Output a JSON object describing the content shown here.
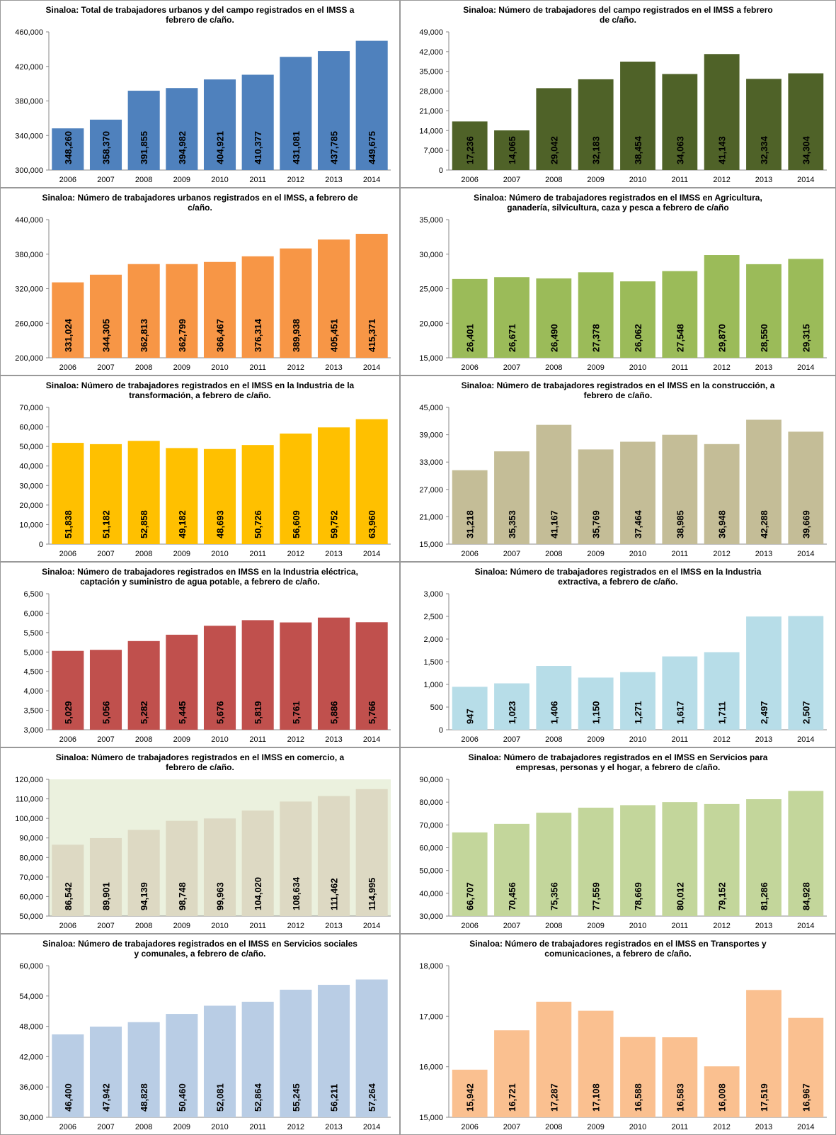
{
  "chart_data": [
    {
      "type": "bar",
      "title": "Sinaloa: Total de trabajadores urbanos y del campo registrados en el IMSS a febrero de c/año.",
      "color": "#4f81bd",
      "categories": [
        "2006",
        "2007",
        "2008",
        "2009",
        "2010",
        "2011",
        "2012",
        "2013",
        "2014"
      ],
      "values": [
        348260,
        358370,
        391855,
        394982,
        404921,
        410377,
        431081,
        437785,
        449675
      ],
      "value_labels": [
        "348,260",
        "358,370",
        "391,855",
        "394,982",
        "404,921",
        "410,377",
        "431,081",
        "437,785",
        "449,675"
      ],
      "ylim": [
        300000,
        460000
      ],
      "yticks": [
        {
          "value": 300000,
          "label": "300,000"
        },
        {
          "value": 340000,
          "label": "340,000"
        },
        {
          "value": 380000,
          "label": "380,000"
        },
        {
          "value": 420000,
          "label": "420,000"
        },
        {
          "value": 460000,
          "label": "460,000"
        }
      ]
    },
    {
      "type": "bar",
      "title": "Sinaloa: Número de trabajadores del campo registrados en el IMSS a febrero de c/año.",
      "color": "#4f6228",
      "categories": [
        "2006",
        "2007",
        "2008",
        "2009",
        "2010",
        "2011",
        "2012",
        "2013",
        "2014"
      ],
      "values": [
        17236,
        14065,
        29042,
        32183,
        38454,
        34063,
        41143,
        32334,
        34304
      ],
      "value_labels": [
        "17,236",
        "14,065",
        "29,042",
        "32,183",
        "38,454",
        "34,063",
        "41,143",
        "32,334",
        "34,304"
      ],
      "ylim": [
        0,
        49000
      ],
      "yticks": [
        0,
        {
          "value": 7000,
          "label": "7,000"
        },
        {
          "value": 14000,
          "label": "14,000"
        },
        {
          "value": 21000,
          "label": "21,000"
        },
        {
          "value": 28000,
          "label": "28,000"
        },
        {
          "value": 35000,
          "label": "35,000"
        },
        {
          "value": 42000,
          "label": "42,000"
        },
        {
          "value": 49000,
          "label": "49,000"
        }
      ]
    },
    {
      "type": "bar",
      "title": "Sinaloa: Número de trabajadores urbanos registrados en el IMSS, a febrero de c/año.",
      "color": "#f79646",
      "categories": [
        "2006",
        "2007",
        "2008",
        "2009",
        "2010",
        "2011",
        "2012",
        "2013",
        "2014"
      ],
      "values": [
        331024,
        344305,
        362813,
        362799,
        366467,
        376314,
        389938,
        405451,
        415371
      ],
      "value_labels": [
        "331,024",
        "344,305",
        "362,813",
        "362,799",
        "366,467",
        "376,314",
        "389,938",
        "405,451",
        "415,371"
      ],
      "ylim": [
        200000,
        440000
      ],
      "yticks": [
        {
          "value": 200000,
          "label": "200,000"
        },
        {
          "value": 260000,
          "label": "260,000"
        },
        {
          "value": 320000,
          "label": "320,000"
        },
        {
          "value": 380000,
          "label": "380,000"
        },
        {
          "value": 440000,
          "label": "440,000"
        }
      ]
    },
    {
      "type": "bar",
      "title": "Sinaloa: Número de trabajadores registrados en el IMSS en Agricultura, ganadería, silvicultura, caza y pesca a febrero de c/año",
      "color": "#9bbb59",
      "categories": [
        "2006",
        "2007",
        "2008",
        "2009",
        "2010",
        "2011",
        "2012",
        "2013",
        "2014"
      ],
      "values": [
        26401,
        26671,
        26490,
        27378,
        26062,
        27548,
        29870,
        28550,
        29315
      ],
      "value_labels": [
        "26,401",
        "26,671",
        "26,490",
        "27,378",
        "26,062",
        "27,548",
        "29,870",
        "28,550",
        "29,315"
      ],
      "ylim": [
        15000,
        35000
      ],
      "yticks": [
        {
          "value": 15000,
          "label": "15,000"
        },
        {
          "value": 20000,
          "label": "20,000"
        },
        {
          "value": 25000,
          "label": "25,000"
        },
        {
          "value": 30000,
          "label": "30,000"
        },
        {
          "value": 35000,
          "label": "35,000"
        }
      ]
    },
    {
      "type": "bar",
      "title": "Sinaloa: Número de trabajadores registrados en el IMSS en la Industria de la transformación, a febrero de c/año.",
      "color": "#ffc000",
      "categories": [
        "2006",
        "2007",
        "2008",
        "2009",
        "2010",
        "2011",
        "2012",
        "2013",
        "2014"
      ],
      "values": [
        51838,
        51182,
        52858,
        49182,
        48693,
        50726,
        56609,
        59752,
        63960
      ],
      "value_labels": [
        "51,838",
        "51,182",
        "52,858",
        "49,182",
        "48,693",
        "50,726",
        "56,609",
        "59,752",
        "63,960"
      ],
      "ylim": [
        0,
        70000
      ],
      "yticks": [
        0,
        {
          "value": 10000,
          "label": "10,000"
        },
        {
          "value": 20000,
          "label": "20,000"
        },
        {
          "value": 30000,
          "label": "30,000"
        },
        {
          "value": 40000,
          "label": "40,000"
        },
        {
          "value": 50000,
          "label": "50,000"
        },
        {
          "value": 60000,
          "label": "60,000"
        },
        {
          "value": 70000,
          "label": "70,000"
        }
      ]
    },
    {
      "type": "bar",
      "title": "Sinaloa: Número de trabajadores registrados en el IMSS en la construcción, a febrero de c/año.",
      "color": "#c4bd97",
      "categories": [
        "2006",
        "2007",
        "2008",
        "2009",
        "2010",
        "2011",
        "2012",
        "2013",
        "2014"
      ],
      "values": [
        31218,
        35353,
        41167,
        35769,
        37464,
        38985,
        36948,
        42288,
        39669
      ],
      "value_labels": [
        "31,218",
        "35,353",
        "41,167",
        "35,769",
        "37,464",
        "38,985",
        "36,948",
        "42,288",
        "39,669"
      ],
      "ylim": [
        15000,
        45000
      ],
      "yticks": [
        {
          "value": 15000,
          "label": "15,000"
        },
        {
          "value": 21000,
          "label": "21,000"
        },
        {
          "value": 27000,
          "label": "27,000"
        },
        {
          "value": 33000,
          "label": "33,000"
        },
        {
          "value": 39000,
          "label": "39,000"
        },
        {
          "value": 45000,
          "label": "45,000"
        }
      ]
    },
    {
      "type": "bar",
      "title": "Sinaloa: Número de trabajadores registrados en IMSS en la Industria eléctrica, captación y suministro de agua potable, a febrero de c/año.",
      "color": "#c0504d",
      "categories": [
        "2006",
        "2007",
        "2008",
        "2009",
        "2010",
        "2011",
        "2012",
        "2013",
        "2014"
      ],
      "values": [
        5029,
        5056,
        5282,
        5445,
        5676,
        5819,
        5761,
        5886,
        5766
      ],
      "value_labels": [
        "5,029",
        "5,056",
        "5,282",
        "5,445",
        "5,676",
        "5,819",
        "5,761",
        "5,886",
        "5,766"
      ],
      "ylim": [
        3000,
        6500
      ],
      "yticks": [
        {
          "value": 3000,
          "label": "3,000"
        },
        {
          "value": 3500,
          "label": "3,500"
        },
        {
          "value": 4000,
          "label": "4,000"
        },
        {
          "value": 4500,
          "label": "4,500"
        },
        {
          "value": 5000,
          "label": "5,000"
        },
        {
          "value": 5500,
          "label": "5,500"
        },
        {
          "value": 6000,
          "label": "6,000"
        },
        {
          "value": 6500,
          "label": "6,500"
        }
      ]
    },
    {
      "type": "bar",
      "title": "Sinaloa: Número de trabajadores registrados en el IMSS en la Industria extractiva, a febrero de c/año.",
      "color": "#b7dde8",
      "categories": [
        "2006",
        "2007",
        "2008",
        "2009",
        "2010",
        "2011",
        "2012",
        "2013",
        "2014"
      ],
      "values": [
        947,
        1023,
        1406,
        1150,
        1271,
        1617,
        1711,
        2497,
        2507
      ],
      "value_labels": [
        "947",
        "1,023",
        "1,406",
        "1,150",
        "1,271",
        "1,617",
        "1,711",
        "2,497",
        "2,507"
      ],
      "ylim": [
        0,
        3000
      ],
      "yticks": [
        0,
        500,
        {
          "value": 1000,
          "label": "1,000"
        },
        {
          "value": 1500,
          "label": "1,500"
        },
        {
          "value": 2000,
          "label": "2,000"
        },
        {
          "value": 2500,
          "label": "2,500"
        },
        {
          "value": 3000,
          "label": "3,000"
        }
      ]
    },
    {
      "type": "bar",
      "title": "Sinaloa: Número de trabajadores registrados en el IMSS en comercio, a febrero de c/año.",
      "color": "#ddd9c3",
      "plot_background": "#ebf1de",
      "categories": [
        "2006",
        "2007",
        "2008",
        "2009",
        "2010",
        "2011",
        "2012",
        "2013",
        "2014"
      ],
      "values": [
        86542,
        89901,
        94139,
        98748,
        99963,
        104020,
        108634,
        111462,
        114995
      ],
      "value_labels": [
        "86,542",
        "89,901",
        "94,139",
        "98,748",
        "99,963",
        "104,020",
        "108,634",
        "111,462",
        "114,995"
      ],
      "ylim": [
        50000,
        120000
      ],
      "yticks": [
        {
          "value": 50000,
          "label": "50,000"
        },
        {
          "value": 60000,
          "label": "60,000"
        },
        {
          "value": 70000,
          "label": "70,000"
        },
        {
          "value": 80000,
          "label": "80,000"
        },
        {
          "value": 90000,
          "label": "90,000"
        },
        {
          "value": 100000,
          "label": "100,000"
        },
        {
          "value": 110000,
          "label": "110,000"
        },
        {
          "value": 120000,
          "label": "120,000"
        }
      ]
    },
    {
      "type": "bar",
      "title": "Sinaloa: Número de trabajadores registrados en el IMSS en Servicios para empresas, personas y el hogar, a febrero de c/año.",
      "color": "#c3d69b",
      "categories": [
        "2006",
        "2007",
        "2008",
        "2009",
        "2010",
        "2011",
        "2012",
        "2013",
        "2014"
      ],
      "values": [
        66707,
        70456,
        75356,
        77559,
        78669,
        80012,
        79152,
        81286,
        84928
      ],
      "value_labels": [
        "66,707",
        "70,456",
        "75,356",
        "77,559",
        "78,669",
        "80,012",
        "79,152",
        "81,286",
        "84,928"
      ],
      "ylim": [
        30000,
        90000
      ],
      "yticks": [
        {
          "value": 30000,
          "label": "30,000"
        },
        {
          "value": 40000,
          "label": "40,000"
        },
        {
          "value": 50000,
          "label": "50,000"
        },
        {
          "value": 60000,
          "label": "60,000"
        },
        {
          "value": 70000,
          "label": "70,000"
        },
        {
          "value": 80000,
          "label": "80,000"
        },
        {
          "value": 90000,
          "label": "90,000"
        }
      ]
    },
    {
      "type": "bar",
      "title": "Sinaloa: Número de trabajadores registrados en el IMSS en Servicios sociales y comunales, a febrero de c/año.",
      "color": "#b9cde5",
      "categories": [
        "2006",
        "2007",
        "2008",
        "2009",
        "2010",
        "2011",
        "2012",
        "2013",
        "2014"
      ],
      "values": [
        46400,
        47942,
        48828,
        50460,
        52081,
        52864,
        55245,
        56211,
        57264
      ],
      "value_labels": [
        "46,400",
        "47,942",
        "48,828",
        "50,460",
        "52,081",
        "52,864",
        "55,245",
        "56,211",
        "57,264"
      ],
      "ylim": [
        30000,
        60000
      ],
      "yticks": [
        {
          "value": 30000,
          "label": "30,000"
        },
        {
          "value": 36000,
          "label": "36,000"
        },
        {
          "value": 42000,
          "label": "42,000"
        },
        {
          "value": 48000,
          "label": "48,000"
        },
        {
          "value": 54000,
          "label": "54,000"
        },
        {
          "value": 60000,
          "label": "60,000"
        }
      ]
    },
    {
      "type": "bar",
      "title": "Sinaloa: Número de trabajadores registrados en el IMSS en Transportes y comunicaciones, a febrero de c/año.",
      "color": "#fac090",
      "categories": [
        "2006",
        "2007",
        "2008",
        "2009",
        "2010",
        "2011",
        "2012",
        "2013",
        "2014"
      ],
      "values": [
        15942,
        16721,
        17287,
        17108,
        16588,
        16583,
        16008,
        17519,
        16967
      ],
      "value_labels": [
        "15,942",
        "16,721",
        "17,287",
        "17,108",
        "16,588",
        "16,583",
        "16,008",
        "17,519",
        "16,967"
      ],
      "ylim": [
        15000,
        18000
      ],
      "yticks": [
        {
          "value": 15000,
          "label": "15,000"
        },
        {
          "value": 16000,
          "label": "16,000"
        },
        {
          "value": 17000,
          "label": "17,000"
        },
        {
          "value": 18000,
          "label": "18,000"
        }
      ]
    }
  ]
}
